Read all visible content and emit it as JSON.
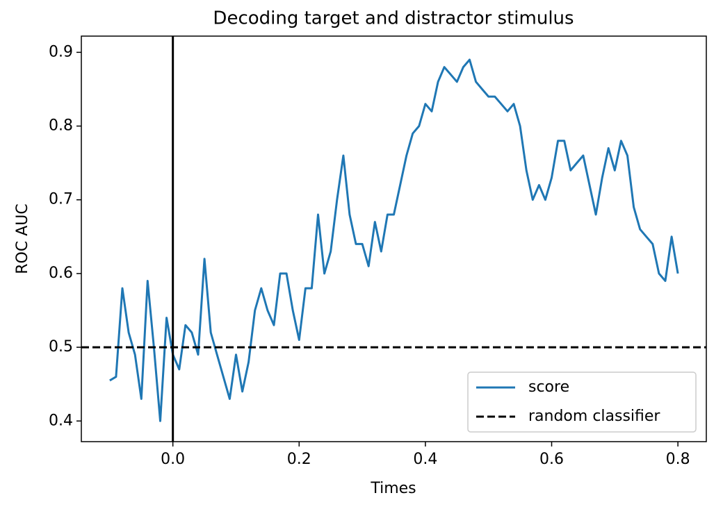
{
  "chart_data": {
    "type": "line",
    "title": "Decoding target and distractor stimulus",
    "x_label": "Times",
    "y_label": "ROC AUC",
    "x": [
      -0.1,
      -0.09,
      -0.08,
      -0.07,
      -0.06,
      -0.05,
      -0.04,
      -0.03,
      -0.02,
      -0.01,
      0.0,
      0.01,
      0.02,
      0.03,
      0.04,
      0.05,
      0.06,
      0.07,
      0.08,
      0.09,
      0.1,
      0.11,
      0.12,
      0.13,
      0.14,
      0.15,
      0.16,
      0.17,
      0.18,
      0.19,
      0.2,
      0.21,
      0.22,
      0.23,
      0.24,
      0.25,
      0.26,
      0.27,
      0.28,
      0.29,
      0.3,
      0.31,
      0.32,
      0.33,
      0.34,
      0.35,
      0.36,
      0.37,
      0.38,
      0.39,
      0.4,
      0.41,
      0.42,
      0.43,
      0.44,
      0.45,
      0.46,
      0.47,
      0.48,
      0.49,
      0.5,
      0.51,
      0.52,
      0.53,
      0.54,
      0.55,
      0.56,
      0.57,
      0.58,
      0.59,
      0.6,
      0.61,
      0.62,
      0.63,
      0.64,
      0.65,
      0.66,
      0.67,
      0.68,
      0.69,
      0.7,
      0.71,
      0.72,
      0.73,
      0.74,
      0.75,
      0.76,
      0.77,
      0.78,
      0.79,
      0.8
    ],
    "series": [
      {
        "name": "score",
        "color": "#1f77b4",
        "values": [
          0.455,
          0.46,
          0.58,
          0.52,
          0.49,
          0.43,
          0.59,
          0.5,
          0.4,
          0.54,
          0.49,
          0.47,
          0.53,
          0.52,
          0.49,
          0.62,
          0.52,
          0.49,
          0.46,
          0.43,
          0.49,
          0.44,
          0.48,
          0.55,
          0.58,
          0.55,
          0.53,
          0.6,
          0.6,
          0.55,
          0.51,
          0.58,
          0.58,
          0.68,
          0.6,
          0.63,
          0.7,
          0.76,
          0.68,
          0.64,
          0.64,
          0.61,
          0.67,
          0.63,
          0.68,
          0.68,
          0.72,
          0.76,
          0.79,
          0.8,
          0.83,
          0.82,
          0.86,
          0.88,
          0.87,
          0.86,
          0.88,
          0.89,
          0.86,
          0.85,
          0.84,
          0.84,
          0.83,
          0.82,
          0.83,
          0.8,
          0.74,
          0.7,
          0.72,
          0.7,
          0.73,
          0.78,
          0.78,
          0.74,
          0.75,
          0.76,
          0.72,
          0.68,
          0.73,
          0.77,
          0.74,
          0.78,
          0.76,
          0.69,
          0.66,
          0.65,
          0.64,
          0.6,
          0.59,
          0.65,
          0.6
        ]
      }
    ],
    "hline": {
      "name": "random classifier",
      "value": 0.5,
      "color": "#000000",
      "dashed": true
    },
    "vline": {
      "value": 0,
      "color": "#000000"
    },
    "xlim": [
      -0.145,
      0.845
    ],
    "ylim": [
      0.372,
      0.922
    ],
    "xticks": [
      {
        "value": 0,
        "label": "0.0"
      },
      0.2,
      0.4,
      0.6,
      0.8
    ],
    "yticks": [
      0.4,
      0.5,
      0.6,
      0.7,
      0.8,
      0.9
    ],
    "legend": "lower right"
  }
}
